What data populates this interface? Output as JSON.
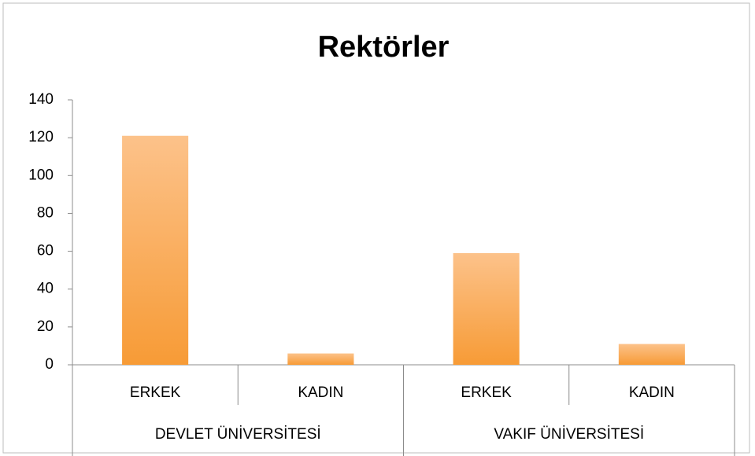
{
  "chart_data": {
    "type": "bar",
    "title": "Rektörler",
    "groups": [
      {
        "name": "DEVLET ÜNİVERSİTESİ",
        "categories": [
          "ERKEK",
          "KADIN"
        ],
        "values": [
          121,
          6
        ]
      },
      {
        "name": "VAKIF ÜNİVERSİTESİ",
        "categories": [
          "ERKEK",
          "KADIN"
        ],
        "values": [
          59,
          11
        ]
      }
    ],
    "color": "#f9a84c",
    "ylim": [
      0,
      140
    ],
    "yticks": [
      0,
      20,
      40,
      60,
      80,
      100,
      120,
      140
    ],
    "grid": false
  }
}
